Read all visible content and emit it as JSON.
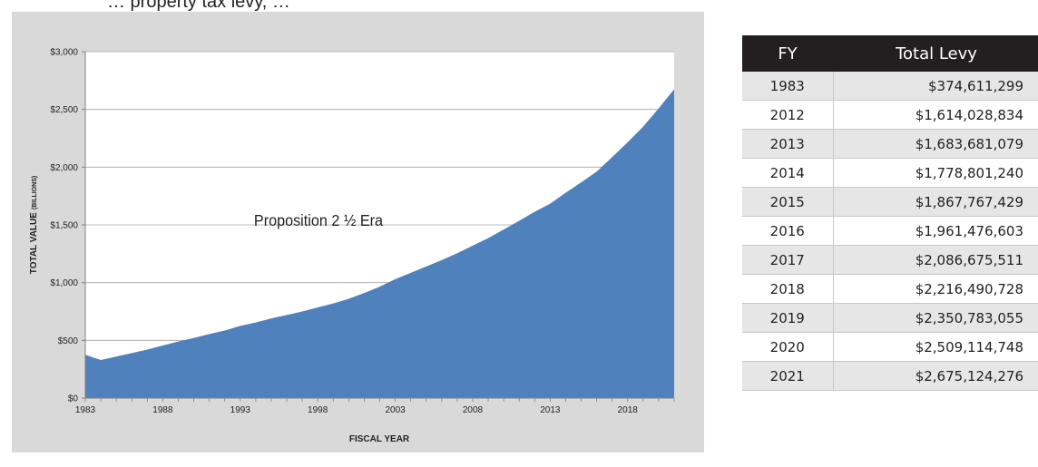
{
  "header_fragment": "… property tax levy, …",
  "chart_data": {
    "type": "area",
    "title": "",
    "xlabel": "FISCAL YEAR",
    "ylabel": "TOTAL VALUE",
    "ylabel_suffix": "(BILLIONS)",
    "xlim": [
      1983,
      2021
    ],
    "ylim": [
      0,
      3000
    ],
    "xticks": [
      "1983",
      "1988",
      "1993",
      "1998",
      "2003",
      "2008",
      "2013",
      "2018"
    ],
    "yticks": [
      "$0",
      "$500",
      "$1,000",
      "$1,500",
      "$2,000",
      "$2,500",
      "$3,000"
    ],
    "annotation": "Proposition 2 ½ Era",
    "grid": true,
    "fill_color": "#4f81bd",
    "x": [
      1983,
      1984,
      1985,
      1986,
      1987,
      1988,
      1989,
      1990,
      1991,
      1992,
      1993,
      1994,
      1995,
      1996,
      1997,
      1998,
      1999,
      2000,
      2001,
      2002,
      2003,
      2004,
      2005,
      2006,
      2007,
      2008,
      2009,
      2010,
      2011,
      2012,
      2013,
      2014,
      2015,
      2016,
      2017,
      2018,
      2019,
      2020,
      2021
    ],
    "values": [
      375,
      330,
      360,
      390,
      420,
      455,
      490,
      520,
      555,
      585,
      625,
      655,
      690,
      720,
      750,
      785,
      820,
      860,
      910,
      965,
      1030,
      1085,
      1140,
      1195,
      1255,
      1320,
      1385,
      1460,
      1535,
      1614,
      1684,
      1779,
      1868,
      1961,
      2087,
      2216,
      2351,
      2509,
      2675
    ]
  },
  "table": {
    "headers": [
      "FY",
      "Total Levy"
    ],
    "rows": [
      {
        "fy": "1983",
        "levy": "$374,611,299"
      },
      {
        "fy": "2012",
        "levy": "$1,614,028,834"
      },
      {
        "fy": "2013",
        "levy": "$1,683,681,079"
      },
      {
        "fy": "2014",
        "levy": "$1,778,801,240"
      },
      {
        "fy": "2015",
        "levy": "$1,867,767,429"
      },
      {
        "fy": "2016",
        "levy": "$1,961,476,603"
      },
      {
        "fy": "2017",
        "levy": "$2,086,675,511"
      },
      {
        "fy": "2018",
        "levy": "$2,216,490,728"
      },
      {
        "fy": "2019",
        "levy": "$2,350,783,055"
      },
      {
        "fy": "2020",
        "levy": "$2,509,114,748"
      },
      {
        "fy": "2021",
        "levy": "$2,675,124,276"
      }
    ]
  }
}
